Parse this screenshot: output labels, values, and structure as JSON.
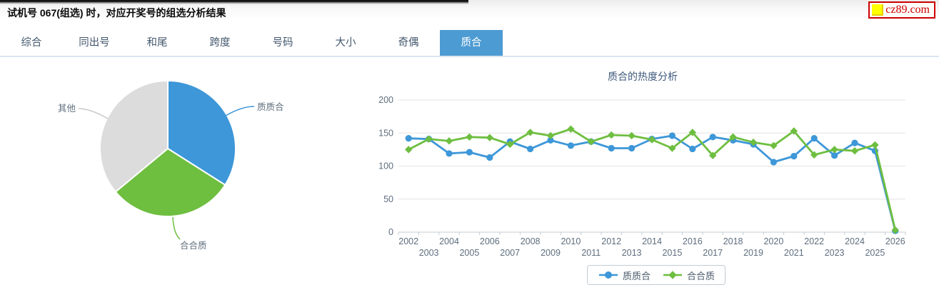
{
  "header": {
    "title": "试机号 067(组选) 时，对应开奖号的组选分析结果",
    "logo_text": "cz89.com",
    "logo_color": "#cc0000",
    "logo_icon_color": "#ffff00"
  },
  "tabs": {
    "active_bg_color": "#4d9bd3",
    "items": [
      {
        "label": "综合",
        "active": false
      },
      {
        "label": "同出号",
        "active": false
      },
      {
        "label": "和尾",
        "active": false
      },
      {
        "label": "跨度",
        "active": false
      },
      {
        "label": "号码",
        "active": false
      },
      {
        "label": "大小",
        "active": false
      },
      {
        "label": "奇偶",
        "active": false
      },
      {
        "label": "质合",
        "active": true
      }
    ]
  },
  "chart_data": [
    {
      "type": "pie",
      "slices": [
        {
          "label": "质质合",
          "value": 34,
          "color": "#3d97d8"
        },
        {
          "label": "合合质",
          "value": 30,
          "color": "#6ebe40"
        },
        {
          "label": "其他",
          "value": 36,
          "color": "#dcdcdc"
        }
      ],
      "start_angle": "top",
      "direction": "clockwise"
    },
    {
      "type": "line",
      "title": "质合的热度分析",
      "x": [
        2002,
        2003,
        2004,
        2005,
        2006,
        2007,
        2008,
        2009,
        2010,
        2011,
        2012,
        2013,
        2014,
        2015,
        2016,
        2017,
        2018,
        2019,
        2020,
        2021,
        2022,
        2023,
        2024,
        2025,
        2026
      ],
      "ylim": [
        0,
        200
      ],
      "yticks": [
        0,
        50,
        100,
        150,
        200
      ],
      "grid": true,
      "legend_position": "bottom",
      "series": [
        {
          "name": "质质合",
          "color": "#3d97d8",
          "marker": "circle",
          "values": [
            142,
            141,
            119,
            121,
            113,
            137,
            126,
            139,
            131,
            137,
            127,
            127,
            141,
            146,
            126,
            144,
            139,
            133,
            106,
            115,
            142,
            116,
            135,
            123,
            2
          ]
        },
        {
          "name": "合合质",
          "color": "#6ebe40",
          "marker": "diamond",
          "values": [
            125,
            141,
            138,
            144,
            143,
            133,
            151,
            146,
            156,
            137,
            147,
            146,
            140,
            127,
            151,
            116,
            144,
            136,
            131,
            153,
            117,
            125,
            123,
            132,
            3
          ]
        }
      ]
    }
  ]
}
